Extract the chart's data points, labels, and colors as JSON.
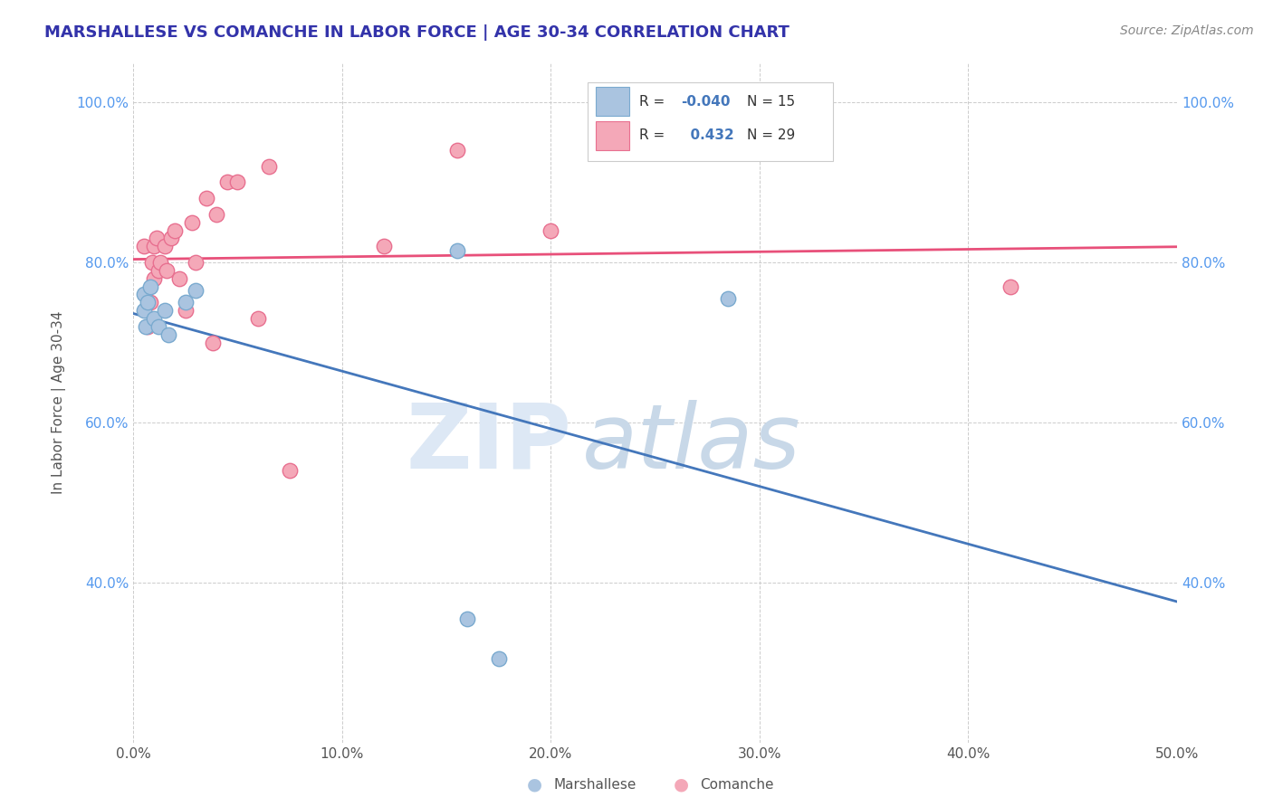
{
  "title": "MARSHALLESE VS COMANCHE IN LABOR FORCE | AGE 30-34 CORRELATION CHART",
  "source": "Source: ZipAtlas.com",
  "ylabel": "In Labor Force | Age 30-34",
  "xlim": [
    0.0,
    50.0
  ],
  "ylim": [
    20.0,
    105.0
  ],
  "xticks": [
    0.0,
    10.0,
    20.0,
    30.0,
    40.0,
    50.0
  ],
  "xticklabels": [
    "0.0%",
    "10.0%",
    "20.0%",
    "30.0%",
    "40.0%",
    "50.0%"
  ],
  "yticks": [
    40.0,
    60.0,
    80.0,
    100.0
  ],
  "yticklabels": [
    "40.0%",
    "60.0%",
    "80.0%",
    "100.0%"
  ],
  "marshallese_x": [
    0.5,
    0.5,
    0.6,
    0.7,
    0.8,
    1.0,
    1.2,
    1.5,
    1.7,
    2.5,
    3.0,
    15.5,
    16.0,
    17.5,
    28.5
  ],
  "marshallese_y": [
    74.0,
    76.0,
    72.0,
    75.0,
    77.0,
    73.0,
    72.0,
    74.0,
    71.0,
    75.0,
    76.5,
    81.5,
    35.5,
    30.5,
    75.5
  ],
  "comanche_x": [
    0.5,
    0.7,
    0.8,
    0.9,
    1.0,
    1.0,
    1.1,
    1.2,
    1.3,
    1.5,
    1.6,
    1.8,
    2.0,
    2.2,
    2.5,
    2.8,
    3.0,
    3.5,
    3.8,
    4.0,
    4.5,
    5.0,
    6.0,
    6.5,
    7.5,
    12.0,
    15.5,
    20.0,
    42.0
  ],
  "comanche_y": [
    82.0,
    72.0,
    75.0,
    80.0,
    78.0,
    82.0,
    83.0,
    79.0,
    80.0,
    82.0,
    79.0,
    83.0,
    84.0,
    78.0,
    74.0,
    85.0,
    80.0,
    88.0,
    70.0,
    86.0,
    90.0,
    90.0,
    73.0,
    92.0,
    54.0,
    82.0,
    94.0,
    84.0,
    77.0
  ],
  "marshallese_color": "#aac4e0",
  "comanche_color": "#f4a8b8",
  "marshallese_edge": "#7aaacf",
  "comanche_edge": "#e87090",
  "reg_marshallese_color": "#4477bb",
  "reg_comanche_color": "#e8507a",
  "r_marshallese": -0.04,
  "n_marshallese": 15,
  "r_comanche": 0.432,
  "n_comanche": 29,
  "watermark_zip": "ZIP",
  "watermark_atlas": "atlas",
  "legend_x_label": "Marshallese",
  "legend_y_label": "Comanche",
  "title_color": "#3333aa",
  "axis_label_color": "#555555",
  "tick_color_y": "#5599ee",
  "tick_color_x": "#555555",
  "grid_color": "#cccccc",
  "background_color": "#ffffff"
}
